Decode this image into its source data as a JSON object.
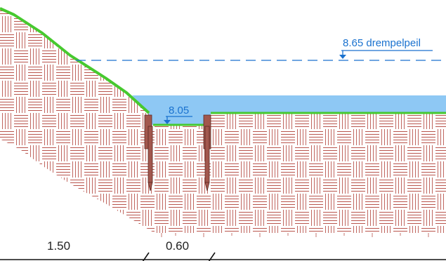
{
  "drawing": {
    "sill_level_label": "8.65 drempelpeil",
    "bottom_level_label": "8.05",
    "dimension_slope": "1.50",
    "dimension_width": "0.60"
  },
  "colors": {
    "soil_hatch": "#b9554d",
    "grass": "#47c92f",
    "water": "#8ec8f4",
    "level_markers": "#1a72cf",
    "sheet_piles": "#a2574d",
    "dimension_lines": "#111111"
  }
}
